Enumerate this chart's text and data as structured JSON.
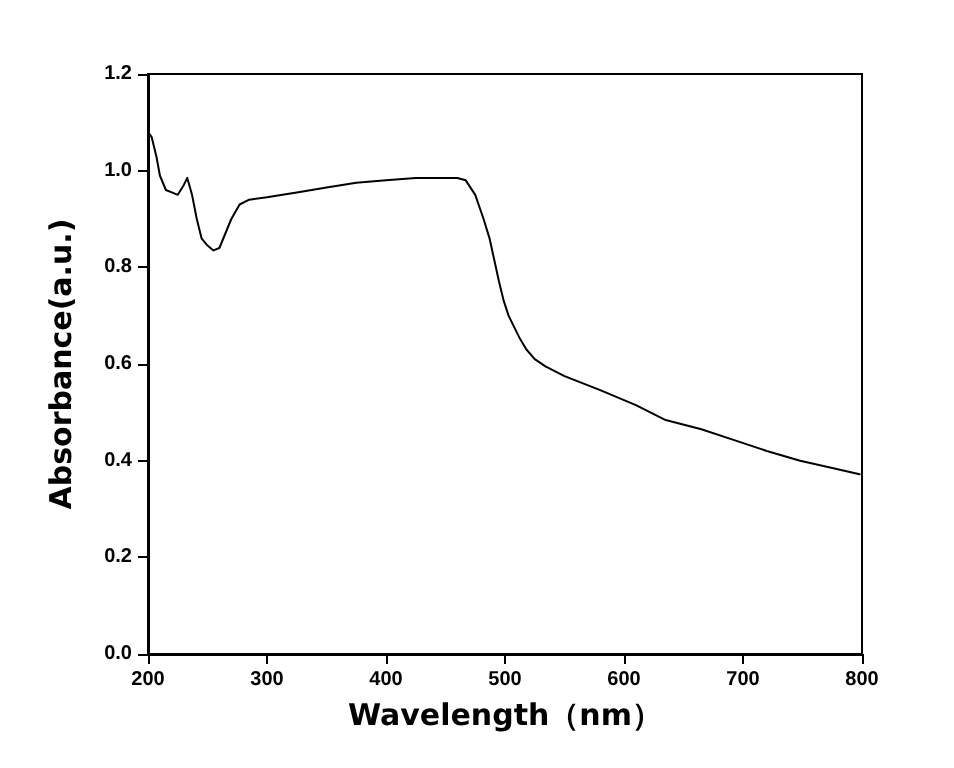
{
  "chart_data": {
    "type": "line",
    "xlabel": "Wavelength（nm）",
    "ylabel": "Absorbance(a.u.)",
    "xlim": [
      200,
      800
    ],
    "xticks": [
      200,
      300,
      400,
      500,
      600,
      700,
      800
    ],
    "ylim": [
      0,
      1.2
    ],
    "yticks": [
      {
        "value": 0,
        "label": "0.0"
      },
      {
        "value": 0.2,
        "label": "0.2"
      },
      {
        "value": 0.4,
        "label": "0.4"
      },
      {
        "value": 0.6,
        "label": "0.6"
      },
      {
        "value": 0.8,
        "label": "0.8"
      },
      {
        "value": 1.0,
        "label": "1.0"
      },
      {
        "value": 1.2,
        "label": "1.2"
      }
    ],
    "grid": false,
    "marker": "none",
    "line_style": "solid",
    "series": [
      {
        "color": "#000000",
        "x": [
          200,
          203,
          207,
          210,
          215,
          220,
          225,
          230,
          233,
          237,
          241,
          245,
          250,
          255,
          260,
          265,
          270,
          277,
          285,
          300,
          325,
          350,
          375,
          400,
          425,
          450,
          460,
          467,
          475,
          482,
          487,
          491,
          495,
          499,
          503,
          507,
          512,
          518,
          525,
          534,
          550,
          580,
          610,
          635,
          665,
          692,
          720,
          748,
          775,
          798
        ],
        "values": [
          1.08,
          1.07,
          1.03,
          0.99,
          0.96,
          0.955,
          0.95,
          0.97,
          0.985,
          0.95,
          0.9,
          0.86,
          0.845,
          0.835,
          0.84,
          0.87,
          0.9,
          0.93,
          0.94,
          0.945,
          0.955,
          0.965,
          0.975,
          0.98,
          0.985,
          0.985,
          0.985,
          0.98,
          0.95,
          0.9,
          0.86,
          0.815,
          0.77,
          0.73,
          0.7,
          0.68,
          0.655,
          0.63,
          0.61,
          0.595,
          0.575,
          0.546,
          0.515,
          0.484,
          0.465,
          0.443,
          0.42,
          0.4,
          0.385,
          0.372
        ]
      }
    ]
  }
}
